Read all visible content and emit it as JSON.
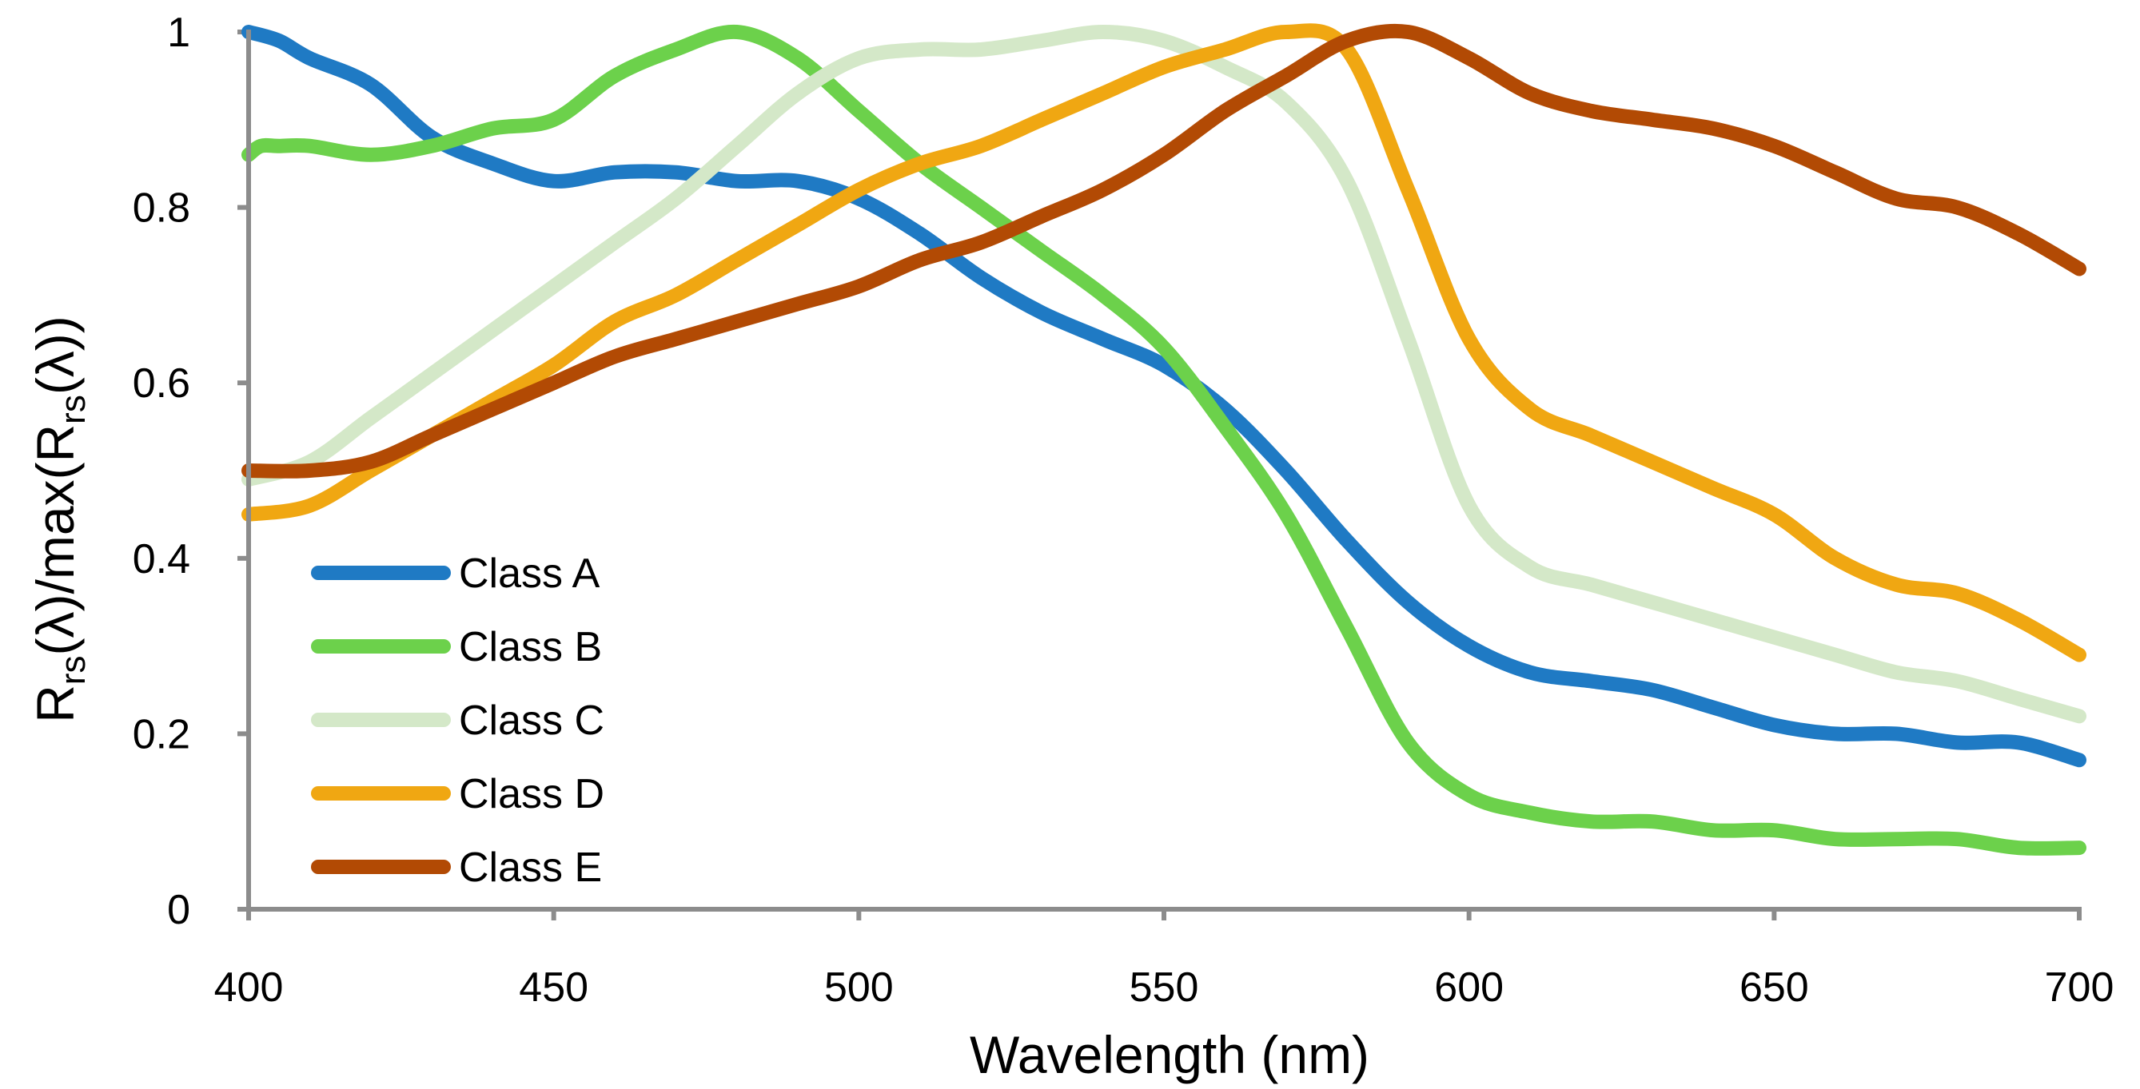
{
  "chart_data": {
    "type": "line",
    "title": "",
    "xlabel": "Wavelength (nm)",
    "ylabel": {
      "R1": "R",
      "sub1": "rs",
      "mid": "(λ)/max(R",
      "sub2": "rs",
      "end": "(λ))"
    },
    "xlim": [
      400,
      700
    ],
    "ylim": [
      0,
      1
    ],
    "xticks": [
      400,
      450,
      500,
      550,
      600,
      650,
      700
    ],
    "yticks": [
      0,
      0.2,
      0.4,
      0.6,
      0.8,
      1
    ],
    "ytick_labels": [
      "0",
      "0.2",
      "0.4",
      "0.6",
      "0.8",
      "1"
    ],
    "xtick_labels": [
      "400",
      "450",
      "500",
      "550",
      "600",
      "650",
      "700"
    ],
    "legend_position": "lower-left",
    "grid": false,
    "series": [
      {
        "name": "Class A",
        "color": "#1f7ac4",
        "x": [
          400,
          405,
          410,
          420,
          430,
          440,
          450,
          460,
          470,
          480,
          490,
          500,
          510,
          520,
          530,
          540,
          550,
          560,
          570,
          580,
          590,
          600,
          610,
          620,
          630,
          640,
          650,
          660,
          670,
          680,
          690,
          700
        ],
        "y": [
          1.0,
          0.99,
          0.97,
          0.94,
          0.88,
          0.85,
          0.83,
          0.84,
          0.84,
          0.83,
          0.83,
          0.81,
          0.77,
          0.72,
          0.68,
          0.65,
          0.62,
          0.57,
          0.5,
          0.42,
          0.35,
          0.3,
          0.27,
          0.26,
          0.25,
          0.23,
          0.21,
          0.2,
          0.2,
          0.19,
          0.19,
          0.17
        ]
      },
      {
        "name": "Class B",
        "color": "#6cd14b",
        "x": [
          400,
          402,
          405,
          410,
          420,
          430,
          440,
          450,
          460,
          470,
          480,
          490,
          500,
          510,
          520,
          530,
          540,
          550,
          560,
          570,
          580,
          590,
          600,
          610,
          620,
          630,
          640,
          650,
          660,
          670,
          680,
          690,
          700
        ],
        "y": [
          0.86,
          0.87,
          0.87,
          0.87,
          0.86,
          0.87,
          0.89,
          0.9,
          0.95,
          0.98,
          1.0,
          0.97,
          0.91,
          0.85,
          0.8,
          0.75,
          0.7,
          0.64,
          0.55,
          0.45,
          0.32,
          0.19,
          0.13,
          0.11,
          0.1,
          0.1,
          0.09,
          0.09,
          0.08,
          0.08,
          0.08,
          0.07,
          0.07
        ]
      },
      {
        "name": "Class C",
        "color": "#d4e8c8",
        "x": [
          400,
          410,
          420,
          430,
          440,
          450,
          460,
          470,
          480,
          490,
          500,
          510,
          520,
          530,
          540,
          550,
          560,
          570,
          580,
          590,
          600,
          610,
          620,
          630,
          640,
          650,
          660,
          670,
          680,
          690,
          700
        ],
        "y": [
          0.49,
          0.51,
          0.56,
          0.61,
          0.66,
          0.71,
          0.76,
          0.81,
          0.87,
          0.93,
          0.97,
          0.98,
          0.98,
          0.99,
          1.0,
          0.99,
          0.96,
          0.92,
          0.83,
          0.65,
          0.46,
          0.39,
          0.37,
          0.35,
          0.33,
          0.31,
          0.29,
          0.27,
          0.26,
          0.24,
          0.22
        ]
      },
      {
        "name": "Class D",
        "color": "#f0a712",
        "x": [
          400,
          410,
          420,
          430,
          440,
          450,
          460,
          470,
          480,
          490,
          500,
          510,
          520,
          530,
          540,
          550,
          560,
          570,
          580,
          590,
          600,
          610,
          620,
          630,
          640,
          650,
          660,
          670,
          680,
          690,
          700
        ],
        "y": [
          0.45,
          0.46,
          0.5,
          0.54,
          0.58,
          0.62,
          0.67,
          0.7,
          0.74,
          0.78,
          0.82,
          0.85,
          0.87,
          0.9,
          0.93,
          0.96,
          0.98,
          1.0,
          0.98,
          0.82,
          0.65,
          0.57,
          0.54,
          0.51,
          0.48,
          0.45,
          0.4,
          0.37,
          0.36,
          0.33,
          0.29
        ]
      },
      {
        "name": "Class E",
        "color": "#b24a04",
        "x": [
          400,
          410,
          420,
          430,
          440,
          450,
          460,
          470,
          480,
          490,
          500,
          510,
          520,
          530,
          540,
          550,
          560,
          570,
          580,
          590,
          600,
          610,
          620,
          630,
          640,
          650,
          660,
          670,
          680,
          690,
          700
        ],
        "y": [
          0.5,
          0.5,
          0.51,
          0.54,
          0.57,
          0.6,
          0.63,
          0.65,
          0.67,
          0.69,
          0.71,
          0.74,
          0.76,
          0.79,
          0.82,
          0.86,
          0.91,
          0.95,
          0.99,
          1.0,
          0.97,
          0.93,
          0.91,
          0.9,
          0.89,
          0.87,
          0.84,
          0.81,
          0.8,
          0.77,
          0.73
        ]
      }
    ]
  }
}
